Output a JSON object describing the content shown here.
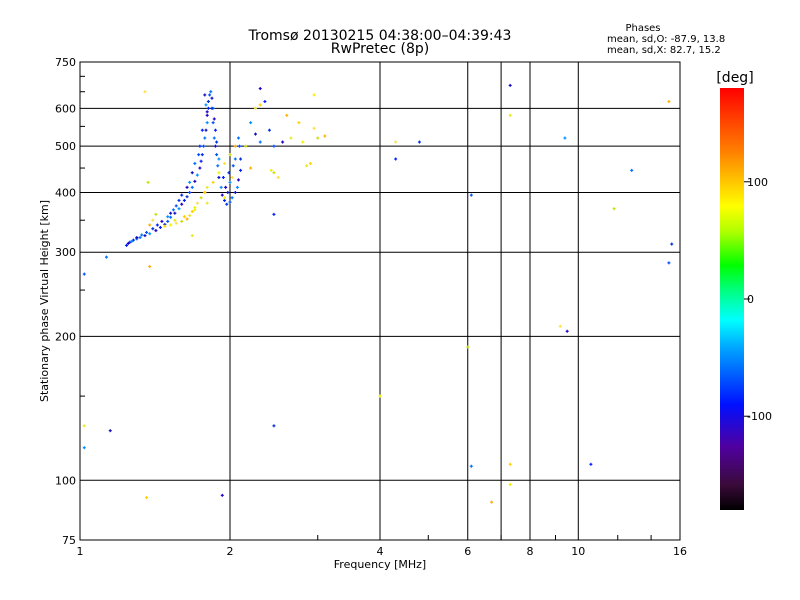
{
  "chart_data": {
    "type": "scatter",
    "title": "Tromsø 20130215 04:38:00–04:39:43",
    "subtitle": "RwPretec (8p)",
    "xlabel": "Frequency [MHz]",
    "ylabel": "Stationary phase Virtual Height [km]",
    "x_scale": "log",
    "y_scale": "log",
    "xlim": [
      1,
      16
    ],
    "ylim": [
      75,
      750
    ],
    "x_ticks": [
      1,
      2,
      4,
      6,
      8,
      10,
      16
    ],
    "y_ticks": [
      75,
      100,
      200,
      300,
      400,
      500,
      600,
      750
    ],
    "x_grid": [
      1,
      2,
      4,
      6,
      7,
      8,
      10,
      16
    ],
    "y_grid": [
      100,
      200,
      300,
      400,
      500,
      600
    ],
    "grid": true,
    "colorbar": {
      "label": "[deg]",
      "range": [
        -180,
        180
      ],
      "ticks": [
        100,
        0,
        -100
      ]
    },
    "info": {
      "title": "Phases",
      "line1": "mean, sd,O: -87.9, 13.8",
      "line2": "mean, sd,X:  82.7, 15.2"
    },
    "series": [
      {
        "name": "O",
        "points": [
          [
            1.26,
            315
          ],
          [
            1.28,
            318
          ],
          [
            1.3,
            320
          ],
          [
            1.32,
            322
          ],
          [
            1.35,
            325
          ],
          [
            1.38,
            328
          ],
          [
            1.42,
            333
          ],
          [
            1.45,
            338
          ],
          [
            1.48,
            343
          ],
          [
            1.5,
            348
          ],
          [
            1.52,
            355
          ],
          [
            1.55,
            362
          ],
          [
            1.58,
            370
          ],
          [
            1.6,
            378
          ],
          [
            1.62,
            385
          ],
          [
            1.64,
            392
          ],
          [
            1.66,
            400
          ],
          [
            1.68,
            410
          ],
          [
            1.7,
            422
          ],
          [
            1.72,
            435
          ],
          [
            1.74,
            450
          ],
          [
            1.75,
            465
          ],
          [
            1.76,
            480
          ],
          [
            1.77,
            500
          ],
          [
            1.78,
            520
          ],
          [
            1.79,
            540
          ],
          [
            1.8,
            560
          ],
          [
            1.8,
            580
          ],
          [
            1.81,
            600
          ],
          [
            1.81,
            620
          ],
          [
            1.82,
            640
          ],
          [
            1.83,
            650
          ],
          [
            1.84,
            630
          ],
          [
            1.85,
            600
          ],
          [
            1.86,
            570
          ],
          [
            1.87,
            540
          ],
          [
            1.88,
            510
          ],
          [
            1.88,
            480
          ],
          [
            1.89,
            455
          ],
          [
            1.9,
            430
          ],
          [
            1.92,
            410
          ],
          [
            1.93,
            395
          ],
          [
            1.95,
            385
          ],
          [
            1.97,
            378
          ],
          [
            2.0,
            382
          ],
          [
            2.02,
            390
          ],
          [
            2.05,
            400
          ],
          [
            2.07,
            410
          ],
          [
            2.08,
            425
          ],
          [
            2.1,
            445
          ],
          [
            2.1,
            470
          ],
          [
            2.09,
            500
          ],
          [
            2.08,
            520
          ],
          [
            1.98,
            400
          ],
          [
            2.0,
            420
          ],
          [
            1.96,
            410
          ],
          [
            1.94,
            430
          ],
          [
            1.99,
            440
          ],
          [
            2.03,
            455
          ],
          [
            2.05,
            470
          ],
          [
            1.78,
            640
          ],
          [
            1.79,
            610
          ],
          [
            1.8,
            590
          ],
          [
            1.76,
            540
          ],
          [
            1.74,
            500
          ],
          [
            1.73,
            480
          ],
          [
            1.7,
            460
          ],
          [
            1.68,
            440
          ],
          [
            1.66,
            420
          ],
          [
            1.64,
            410
          ],
          [
            1.6,
            395
          ],
          [
            1.58,
            385
          ],
          [
            1.56,
            375
          ],
          [
            1.54,
            368
          ],
          [
            1.52,
            362
          ],
          [
            1.5,
            356
          ],
          [
            1.46,
            348
          ],
          [
            1.43,
            342
          ],
          [
            1.4,
            336
          ],
          [
            1.36,
            330
          ],
          [
            1.33,
            326
          ],
          [
            1.3,
            322
          ],
          [
            1.27,
            316
          ],
          [
            1.25,
            313
          ],
          [
            1.24,
            310
          ],
          [
            1.84,
            600
          ],
          [
            1.85,
            560
          ],
          [
            1.86,
            520
          ],
          [
            1.87,
            500
          ],
          [
            1.9,
            470
          ],
          [
            2.3,
            660
          ],
          [
            2.35,
            620
          ],
          [
            2.4,
            540
          ],
          [
            2.45,
            500
          ],
          [
            2.3,
            510
          ],
          [
            2.25,
            530
          ],
          [
            2.2,
            560
          ],
          [
            2.55,
            510
          ],
          [
            2.45,
            360
          ],
          [
            2.45,
            130
          ],
          [
            1.02,
            270
          ],
          [
            1.13,
            293
          ],
          [
            1.15,
            127
          ],
          [
            1.02,
            117
          ],
          [
            1.93,
            93
          ],
          [
            4.3,
            470
          ],
          [
            4.8,
            510
          ],
          [
            6.1,
            395
          ],
          [
            6.1,
            107
          ],
          [
            7.3,
            670
          ],
          [
            9.4,
            520
          ],
          [
            9.5,
            205
          ],
          [
            10.6,
            108
          ],
          [
            15.4,
            312
          ],
          [
            15.2,
            285
          ],
          [
            12.8,
            445
          ]
        ]
      },
      {
        "name": "X",
        "points": [
          [
            1.48,
            340
          ],
          [
            1.52,
            342
          ],
          [
            1.56,
            345
          ],
          [
            1.6,
            348
          ],
          [
            1.64,
            352
          ],
          [
            1.66,
            358
          ],
          [
            1.68,
            365
          ],
          [
            1.7,
            372
          ],
          [
            1.72,
            380
          ],
          [
            1.75,
            390
          ],
          [
            1.78,
            400
          ],
          [
            1.8,
            410
          ],
          [
            1.85,
            420
          ],
          [
            1.9,
            440
          ],
          [
            1.95,
            460
          ],
          [
            2.0,
            480
          ],
          [
            2.05,
            500
          ],
          [
            1.55,
            350
          ],
          [
            1.62,
            356
          ],
          [
            1.7,
            368
          ],
          [
            1.4,
            350
          ],
          [
            1.42,
            360
          ],
          [
            1.38,
            342
          ],
          [
            1.68,
            325
          ],
          [
            1.78,
            400
          ],
          [
            1.95,
            390
          ],
          [
            2.02,
            430
          ],
          [
            2.15,
            500
          ],
          [
            2.2,
            450
          ],
          [
            2.25,
            600
          ],
          [
            2.3,
            610
          ],
          [
            2.42,
            445
          ],
          [
            2.5,
            430
          ],
          [
            2.45,
            440
          ],
          [
            2.6,
            580
          ],
          [
            2.65,
            520
          ],
          [
            2.75,
            560
          ],
          [
            2.8,
            510
          ],
          [
            2.95,
            545
          ],
          [
            3.0,
            520
          ],
          [
            3.1,
            525
          ],
          [
            2.85,
            455
          ],
          [
            2.9,
            460
          ],
          [
            2.95,
            640
          ],
          [
            1.35,
            650
          ],
          [
            1.37,
            420
          ],
          [
            1.38,
            280
          ],
          [
            1.02,
            130
          ],
          [
            1.36,
            92
          ],
          [
            4.0,
            150
          ],
          [
            4.3,
            510
          ],
          [
            6.0,
            190
          ],
          [
            6.7,
            90
          ],
          [
            7.3,
            580
          ],
          [
            7.3,
            108
          ],
          [
            7.3,
            98
          ],
          [
            9.2,
            210
          ],
          [
            11.8,
            370
          ],
          [
            15.2,
            620
          ],
          [
            1.8,
            380
          ]
        ]
      }
    ]
  }
}
